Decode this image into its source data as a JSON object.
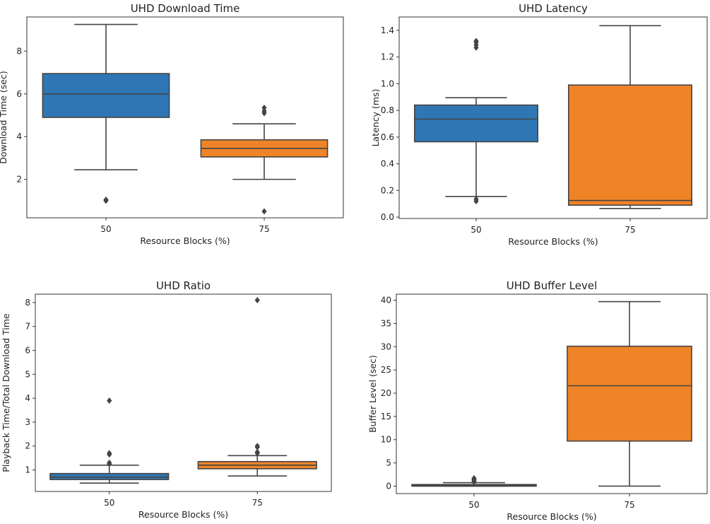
{
  "colors": {
    "series_a": "#2f77b4",
    "series_b": "#ee8427",
    "line": "#444444"
  },
  "chart_data": [
    {
      "type": "box",
      "title": "UHD Download Time",
      "xlabel": "Resource Blocks (%)",
      "ylabel": "Download Time (sec)",
      "ylim": [
        0.2,
        9.6
      ],
      "yticks": [
        2,
        4,
        6,
        8
      ],
      "tick_labels": [
        "2",
        "4",
        "6",
        "8"
      ],
      "categories": [
        "50",
        "75"
      ],
      "boxes": [
        {
          "whisker_low": 2.45,
          "q1": 4.9,
          "median": 6.0,
          "q3": 6.95,
          "whisker_high": 9.25,
          "outliers": [
            1.0,
            1.05
          ]
        },
        {
          "whisker_low": 2.0,
          "q1": 3.05,
          "median": 3.45,
          "q3": 3.85,
          "whisker_high": 4.6,
          "outliers": [
            0.5,
            5.1,
            5.2,
            5.35
          ]
        }
      ]
    },
    {
      "type": "box",
      "title": "UHD Latency",
      "xlabel": "Resource Blocks (%)",
      "ylabel": "Latency (ms)",
      "ylim": [
        -0.01,
        1.5
      ],
      "yticks": [
        0.0,
        0.2,
        0.4,
        0.6,
        0.8,
        1.0,
        1.2,
        1.4
      ],
      "tick_labels": [
        "0.0",
        "0.2",
        "0.4",
        "0.6",
        "0.8",
        "1.0",
        "1.2",
        "1.4"
      ],
      "categories": [
        "50",
        "75"
      ],
      "boxes": [
        {
          "whisker_low": 0.155,
          "q1": 0.565,
          "median": 0.735,
          "q3": 0.84,
          "whisker_high": 0.895,
          "outliers": [
            0.12,
            0.135,
            1.27,
            1.29,
            1.31,
            1.32
          ]
        },
        {
          "whisker_low": 0.065,
          "q1": 0.09,
          "median": 0.125,
          "q3": 0.99,
          "whisker_high": 1.435,
          "outliers": []
        }
      ]
    },
    {
      "type": "box",
      "title": "UHD Ratio",
      "xlabel": "Resource Blocks (%)",
      "ylabel": "Playback Time/Total Download Time",
      "ylim": [
        0.1,
        8.35
      ],
      "yticks": [
        1,
        2,
        3,
        4,
        5,
        6,
        7,
        8
      ],
      "tick_labels": [
        "1",
        "2",
        "3",
        "4",
        "5",
        "6",
        "7",
        "8"
      ],
      "categories": [
        "50",
        "75"
      ],
      "boxes": [
        {
          "whisker_low": 0.45,
          "q1": 0.6,
          "median": 0.7,
          "q3": 0.85,
          "whisker_high": 1.2,
          "outliers": [
            1.25,
            1.3,
            1.65,
            1.7,
            3.9
          ]
        },
        {
          "whisker_low": 0.75,
          "q1": 1.05,
          "median": 1.2,
          "q3": 1.35,
          "whisker_high": 1.6,
          "outliers": [
            1.7,
            1.75,
            1.95,
            2.0,
            8.1
          ]
        }
      ]
    },
    {
      "type": "box",
      "title": "UHD Buffer Level",
      "xlabel": "Resource Blocks (%)",
      "ylabel": "Buffer Level (sec)",
      "ylim": [
        -1.6,
        41.3
      ],
      "yticks": [
        0,
        5,
        10,
        15,
        20,
        25,
        30,
        35,
        40
      ],
      "tick_labels": [
        "0",
        "5",
        "10",
        "15",
        "20",
        "25",
        "30",
        "35",
        "40"
      ],
      "categories": [
        "50",
        "75"
      ],
      "boxes": [
        {
          "whisker_low": 0.0,
          "q1": 0.0,
          "median": 0.15,
          "q3": 0.35,
          "whisker_high": 0.75,
          "outliers": [
            0.9,
            1.1,
            1.3,
            1.5,
            1.7
          ]
        },
        {
          "whisker_low": 0.0,
          "q1": 9.7,
          "median": 21.6,
          "q3": 30.1,
          "whisker_high": 39.7,
          "outliers": []
        }
      ]
    }
  ]
}
